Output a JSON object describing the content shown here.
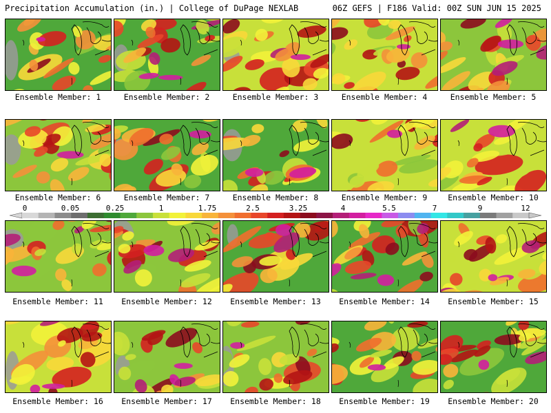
{
  "header": {
    "left": "Precipitation Accumulation (in.) | College of DuPage NEXLAB",
    "right": "06Z GEFS | F186 Valid: 00Z SUN JUN 15 2025"
  },
  "members": [
    {
      "label": "Ensemble Member: 1"
    },
    {
      "label": "Ensemble Member: 2"
    },
    {
      "label": "Ensemble Member: 3"
    },
    {
      "label": "Ensemble Member: 4"
    },
    {
      "label": "Ensemble Member: 5"
    },
    {
      "label": "Ensemble Member: 6"
    },
    {
      "label": "Ensemble Member: 7"
    },
    {
      "label": "Ensemble Member: 8"
    },
    {
      "label": "Ensemble Member: 9"
    },
    {
      "label": "Ensemble Member: 10"
    },
    {
      "label": "Ensemble Member: 11"
    },
    {
      "label": "Ensemble Member: 12"
    },
    {
      "label": "Ensemble Member: 13"
    },
    {
      "label": "Ensemble Member: 14"
    },
    {
      "label": "Ensemble Member: 15"
    },
    {
      "label": "Ensemble Member: 16"
    },
    {
      "label": "Ensemble Member: 17"
    },
    {
      "label": "Ensemble Member: 18"
    },
    {
      "label": "Ensemble Member: 19"
    },
    {
      "label": "Ensemble Member: 20"
    }
  ],
  "colorbar": {
    "tick_labels": [
      "0",
      "0.05",
      "0.25",
      "1",
      "1.75",
      "2.5",
      "3.25",
      "4",
      "5.5",
      "7",
      "9",
      "12"
    ],
    "colors": [
      "#d8d8d8",
      "#b4b4b4",
      "#8c8c8c",
      "#6e6e6e",
      "#3c6e32",
      "#2e8b2e",
      "#4fa83a",
      "#8cc63c",
      "#c8e03a",
      "#f2f23a",
      "#f8d83a",
      "#f8b43a",
      "#f4903a",
      "#f06e2e",
      "#e8462a",
      "#d42020",
      "#b41414",
      "#8c0c1e",
      "#8c1446",
      "#b41e78",
      "#d21ea0",
      "#e628c8",
      "#c85ae6",
      "#8c8cf0",
      "#50b4f0",
      "#32e6e6",
      "#32c8c8",
      "#46a0a0",
      "#7a7a7a",
      "#a0a0a0",
      "#c8c8c8"
    ]
  }
}
